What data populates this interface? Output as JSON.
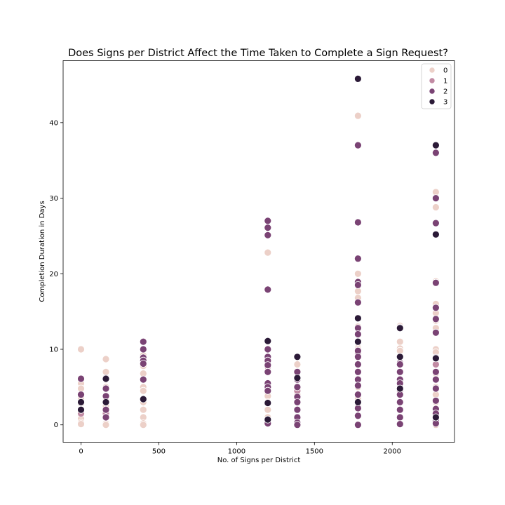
{
  "chart_data": {
    "type": "scatter",
    "title": "Does Signs per District Affect the Time Taken to Complete a Sign Request?",
    "xlabel": "No. of Signs per District",
    "ylabel": "Completion Duration in Days",
    "xlim": [
      -115,
      2400
    ],
    "ylim": [
      -2.3,
      48.2
    ],
    "xticks": [
      0,
      500,
      1000,
      1500,
      2000
    ],
    "yticks": [
      0,
      10,
      20,
      30,
      40
    ],
    "grid": false,
    "legend_position": "top-right",
    "series": [
      {
        "name": "0",
        "color": "#ecd0c8",
        "points": [
          [
            0,
            10
          ],
          [
            0,
            5.5
          ],
          [
            0,
            4.8
          ],
          [
            0,
            3.5
          ],
          [
            0,
            2.8
          ],
          [
            0,
            2.1
          ],
          [
            0,
            1.2
          ],
          [
            0,
            0.8
          ],
          [
            0,
            0.3
          ],
          [
            0,
            0.1
          ],
          [
            160,
            8.7
          ],
          [
            160,
            7.0
          ],
          [
            160,
            6.0
          ],
          [
            160,
            5.0
          ],
          [
            160,
            3.9
          ],
          [
            160,
            3.2
          ],
          [
            160,
            2.5
          ],
          [
            160,
            0.9
          ],
          [
            160,
            0.2
          ],
          [
            160,
            0
          ],
          [
            400,
            11.0
          ],
          [
            400,
            9.2
          ],
          [
            400,
            7.8
          ],
          [
            400,
            6.8
          ],
          [
            400,
            5.0
          ],
          [
            400,
            4.5
          ],
          [
            400,
            3.0
          ],
          [
            400,
            2.0
          ],
          [
            400,
            1.0
          ],
          [
            400,
            0.2
          ],
          [
            400,
            0
          ],
          [
            1200,
            22.8
          ],
          [
            1200,
            11.0
          ],
          [
            1200,
            8.0
          ],
          [
            1200,
            5.0
          ],
          [
            1200,
            4.2
          ],
          [
            1200,
            3.8
          ],
          [
            1200,
            3.0
          ],
          [
            1200,
            2.0
          ],
          [
            1200,
            1.0
          ],
          [
            1390,
            8.0
          ],
          [
            1390,
            7.1
          ],
          [
            1390,
            6.0
          ],
          [
            1390,
            5.0
          ],
          [
            1390,
            4.0
          ],
          [
            1390,
            3.0
          ],
          [
            1390,
            1.0
          ],
          [
            1390,
            0.2
          ],
          [
            1780,
            40.9
          ],
          [
            1780,
            20.0
          ],
          [
            1780,
            19.0
          ],
          [
            1780,
            17.7
          ],
          [
            1780,
            16.8
          ],
          [
            1780,
            13.0
          ],
          [
            1780,
            12.0
          ],
          [
            1780,
            10.2
          ],
          [
            1780,
            10.0
          ],
          [
            1780,
            8.0
          ],
          [
            1780,
            7.0
          ],
          [
            1780,
            5.0
          ],
          [
            1780,
            4.0
          ],
          [
            1780,
            3.5
          ],
          [
            1780,
            2.8
          ],
          [
            2050,
            13.1
          ],
          [
            2050,
            11.0
          ],
          [
            2050,
            10.1
          ],
          [
            2050,
            9.8
          ],
          [
            2050,
            9.0
          ],
          [
            2050,
            7.0
          ],
          [
            2050,
            6.0
          ],
          [
            2050,
            5.0
          ],
          [
            2050,
            3.0
          ],
          [
            2050,
            2.0
          ],
          [
            2050,
            1.0
          ],
          [
            2280,
            30.8
          ],
          [
            2280,
            28.8
          ],
          [
            2280,
            19.0
          ],
          [
            2280,
            18.8
          ],
          [
            2280,
            16.0
          ],
          [
            2280,
            14.8
          ],
          [
            2280,
            13.8
          ],
          [
            2280,
            12.8
          ],
          [
            2280,
            10.0
          ],
          [
            2280,
            9.6
          ],
          [
            2280,
            8.8
          ],
          [
            2280,
            8.0
          ],
          [
            2280,
            7.0
          ],
          [
            2280,
            6.8
          ],
          [
            2280,
            5.0
          ],
          [
            2280,
            4.0
          ],
          [
            2280,
            3.0
          ],
          [
            2280,
            2.0
          ],
          [
            2280,
            1.0
          ],
          [
            2280,
            0
          ]
        ]
      },
      {
        "name": "1",
        "color": "#c18aa3",
        "points": [
          [
            0,
            1.5
          ],
          [
            160,
            1.5
          ],
          [
            400,
            6.0
          ],
          [
            1200,
            7.7
          ],
          [
            1390,
            4.5
          ],
          [
            1780,
            9.5
          ],
          [
            2050,
            4.5
          ],
          [
            2280,
            8.0
          ]
        ]
      },
      {
        "name": "2",
        "color": "#7a4374",
        "points": [
          [
            0,
            6.1
          ],
          [
            0,
            4.0
          ],
          [
            0,
            2.0
          ],
          [
            160,
            6.2
          ],
          [
            160,
            4.8
          ],
          [
            160,
            3.8
          ],
          [
            160,
            2.0
          ],
          [
            160,
            1.0
          ],
          [
            400,
            11.0
          ],
          [
            400,
            10.0
          ],
          [
            400,
            8.9
          ],
          [
            400,
            8.5
          ],
          [
            400,
            8.1
          ],
          [
            400,
            6.0
          ],
          [
            1200,
            27.0
          ],
          [
            1200,
            26.1
          ],
          [
            1200,
            25.1
          ],
          [
            1200,
            17.9
          ],
          [
            1200,
            10.0
          ],
          [
            1200,
            9.0
          ],
          [
            1200,
            8.5
          ],
          [
            1200,
            7.9
          ],
          [
            1200,
            7.0
          ],
          [
            1200,
            5.5
          ],
          [
            1200,
            5.0
          ],
          [
            1200,
            4.5
          ],
          [
            1200,
            0.4
          ],
          [
            1200,
            0.2
          ],
          [
            1390,
            7.0
          ],
          [
            1390,
            6.0
          ],
          [
            1390,
            5.0
          ],
          [
            1390,
            3.7
          ],
          [
            1390,
            3.0
          ],
          [
            1390,
            2.0
          ],
          [
            1390,
            1.0
          ],
          [
            1390,
            0.3
          ],
          [
            1390,
            0
          ],
          [
            1780,
            37.0
          ],
          [
            1780,
            26.8
          ],
          [
            1780,
            22.0
          ],
          [
            1780,
            18.9
          ],
          [
            1780,
            18.5
          ],
          [
            1780,
            16.2
          ],
          [
            1780,
            12.8
          ],
          [
            1780,
            12.0
          ],
          [
            1780,
            11.0
          ],
          [
            1780,
            9.8
          ],
          [
            1780,
            9.0
          ],
          [
            1780,
            8.0
          ],
          [
            1780,
            7.0
          ],
          [
            1780,
            6.0
          ],
          [
            1780,
            5.2
          ],
          [
            1780,
            4.0
          ],
          [
            1780,
            2.2
          ],
          [
            1780,
            1.2
          ],
          [
            1780,
            0
          ],
          [
            2050,
            12.9
          ],
          [
            2050,
            8.2
          ],
          [
            2050,
            8.0
          ],
          [
            2050,
            7.0
          ],
          [
            2050,
            6.0
          ],
          [
            2050,
            5.5
          ],
          [
            2050,
            4.0
          ],
          [
            2050,
            3.0
          ],
          [
            2050,
            2.0
          ],
          [
            2050,
            1.0
          ],
          [
            2050,
            0.1
          ],
          [
            2280,
            36.0
          ],
          [
            2280,
            30.0
          ],
          [
            2280,
            26.7
          ],
          [
            2280,
            18.8
          ],
          [
            2280,
            15.5
          ],
          [
            2280,
            14.0
          ],
          [
            2280,
            12.2
          ],
          [
            2280,
            8.9
          ],
          [
            2280,
            7.0
          ],
          [
            2280,
            6.0
          ],
          [
            2280,
            4.8
          ],
          [
            2280,
            3.2
          ],
          [
            2280,
            2.1
          ],
          [
            2280,
            1.5
          ],
          [
            2280,
            0.5
          ],
          [
            2280,
            0.2
          ]
        ]
      },
      {
        "name": "3",
        "color": "#2b1a37",
        "points": [
          [
            0,
            3.0
          ],
          [
            0,
            2.0
          ],
          [
            160,
            6.1
          ],
          [
            160,
            3.0
          ],
          [
            400,
            3.4
          ],
          [
            1200,
            11.1
          ],
          [
            1200,
            2.9
          ],
          [
            1200,
            0.7
          ],
          [
            1390,
            9.0
          ],
          [
            1390,
            6.2
          ],
          [
            1780,
            45.8
          ],
          [
            1780,
            14.1
          ],
          [
            1780,
            11.0
          ],
          [
            1780,
            3.0
          ],
          [
            2050,
            12.8
          ],
          [
            2050,
            9.0
          ],
          [
            2050,
            4.8
          ],
          [
            2280,
            37.0
          ],
          [
            2280,
            25.2
          ],
          [
            2280,
            8.8
          ],
          [
            2280,
            1.0
          ]
        ]
      }
    ]
  }
}
